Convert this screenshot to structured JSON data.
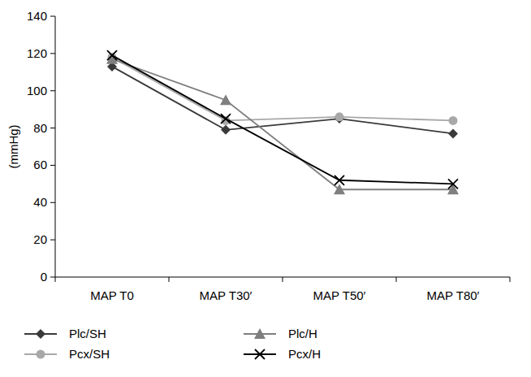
{
  "chart_data": {
    "type": "line",
    "y_label": "(mmHg)",
    "categories": [
      "MAP T0",
      "MAP T30′",
      "MAP T50′",
      "MAP T80′"
    ],
    "series": [
      {
        "name": "Plc/SH",
        "color": "#3a3a3a",
        "marker": "diamond",
        "values": [
          113,
          79,
          85,
          77
        ]
      },
      {
        "name": "Pcx/SH",
        "color": "#a8a8a8",
        "marker": "circle",
        "values": [
          118,
          84,
          86,
          84
        ]
      },
      {
        "name": "Plc/H",
        "color": "#7f7f7f",
        "marker": "triangle",
        "values": [
          117,
          95,
          47,
          47
        ]
      },
      {
        "name": "Pcx/H",
        "color": "#000000",
        "marker": "x",
        "values": [
          119,
          85,
          52,
          50
        ]
      }
    ],
    "ylim": [
      0,
      140
    ],
    "yticks": [
      0,
      20,
      40,
      60,
      80,
      100,
      120,
      140
    ],
    "grid": false,
    "legend": "bottom"
  }
}
